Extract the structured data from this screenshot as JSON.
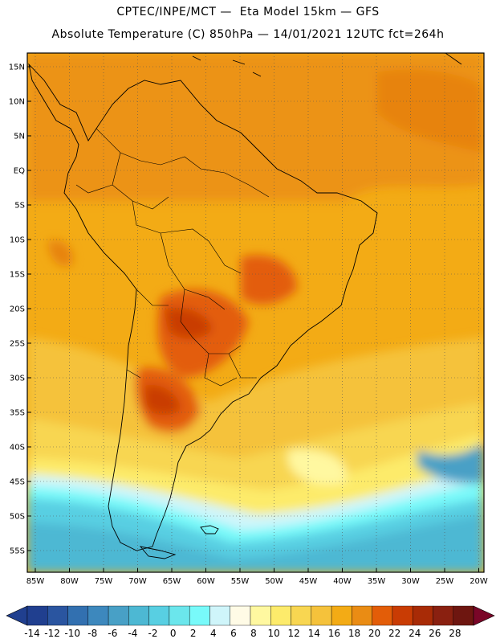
{
  "header": {
    "line1": "CPTEC/INPE/MCT —  Eta Model 15km — GFS",
    "line2": "Absolute Temperature (C) 850hPa — 14/01/2021 12UTC fct=264h"
  },
  "map": {
    "lat_labels": [
      "15N",
      "10N",
      "5N",
      "EQ",
      "5S",
      "10S",
      "15S",
      "20S",
      "25S",
      "30S",
      "35S",
      "40S",
      "45S",
      "50S",
      "55S"
    ],
    "lon_labels": [
      "85W",
      "80W",
      "75W",
      "70W",
      "65W",
      "60W",
      "55W",
      "50W",
      "45W",
      "40W",
      "35W",
      "30W",
      "25W",
      "20W"
    ],
    "lat_range": [
      -57,
      16
    ],
    "lon_range": [
      -85,
      -20
    ],
    "grid": "dotted"
  },
  "colorbar": {
    "levels": [
      "-14",
      "-12",
      "-10",
      "-8",
      "-6",
      "-4",
      "-2",
      "0",
      "2",
      "4",
      "6",
      "8",
      "10",
      "12",
      "14",
      "16",
      "18",
      "20",
      "22",
      "24",
      "26",
      "28"
    ],
    "colors": [
      "#203f8f",
      "#2a55a0",
      "#3270b0",
      "#3d88bd",
      "#48a0c6",
      "#4db8d3",
      "#58cfe2",
      "#6be6ec",
      "#78fafa",
      "#cff5fa",
      "#fffbe6",
      "#fff8a0",
      "#fdeb6b",
      "#f8d651",
      "#f5c23b",
      "#f3ab15",
      "#ea8c14",
      "#e35d08",
      "#c93c04",
      "#a82b06",
      "#8a2010",
      "#6e1610",
      "#7a0628"
    ],
    "over_color": "#7a0628",
    "under_color": "#203f8f"
  }
}
